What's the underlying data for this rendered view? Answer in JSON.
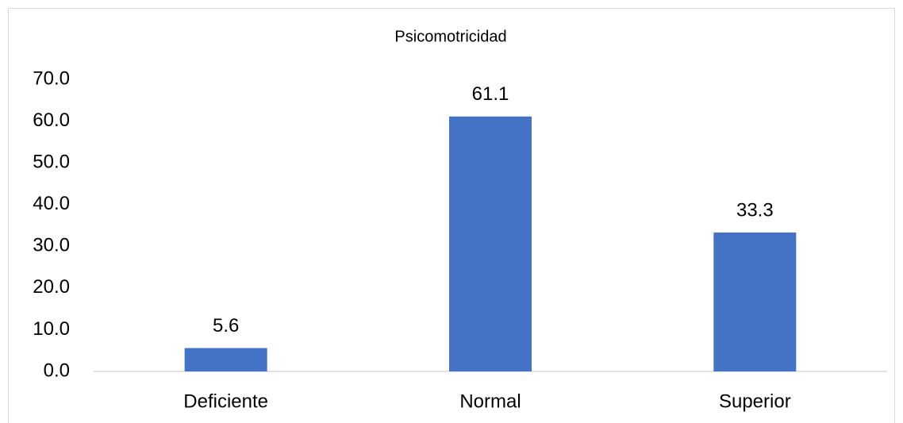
{
  "chart_data": {
    "type": "bar",
    "title": "Psicomotricidad",
    "categories": [
      "Deficiente",
      "Normal",
      "Superior"
    ],
    "values": [
      5.6,
      61.1,
      33.3
    ],
    "color": "#4472c4",
    "ylim": [
      0,
      70
    ],
    "yticks": [
      {
        "value": 0,
        "label": "0.0"
      },
      {
        "value": 10,
        "label": "10.0"
      },
      {
        "value": 20,
        "label": "20.0"
      },
      {
        "value": 30,
        "label": "30.0"
      },
      {
        "value": 40,
        "label": "40.0"
      },
      {
        "value": 50,
        "label": "50.0"
      },
      {
        "value": 60,
        "label": "60.0"
      },
      {
        "value": 70,
        "label": "70.0"
      }
    ],
    "grid": false
  }
}
